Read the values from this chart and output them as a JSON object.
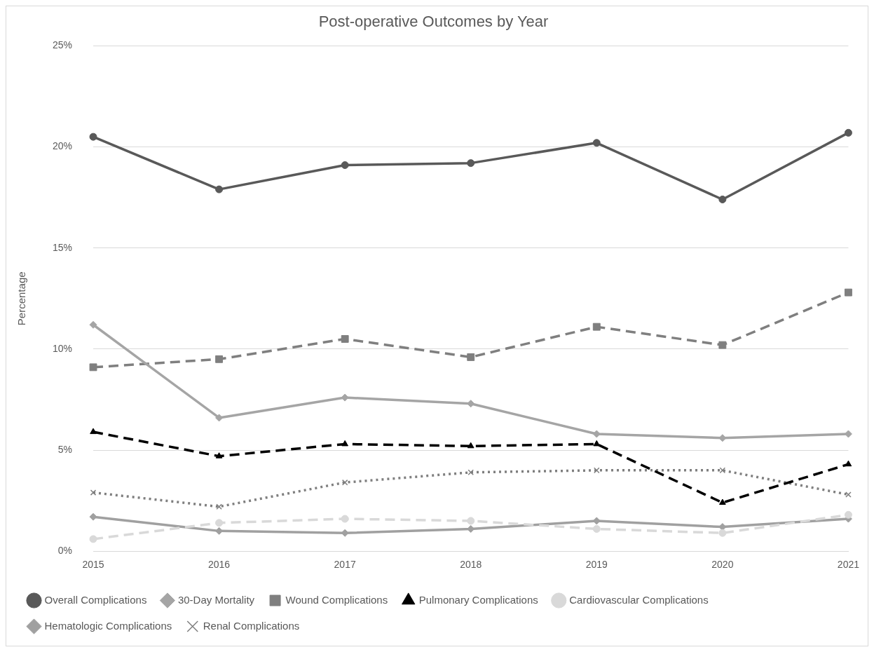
{
  "chart_data": {
    "type": "line",
    "title": "Post-operative Outcomes by Year",
    "ylabel": "Percentage",
    "categories": [
      "2015",
      "2016",
      "2017",
      "2018",
      "2019",
      "2020",
      "2021"
    ],
    "series": [
      {
        "name": "Overall Complications",
        "color": "#595959",
        "marker": "circle",
        "line_style": "solid",
        "values": [
          20.5,
          17.9,
          19.1,
          19.2,
          20.2,
          17.4,
          20.7
        ]
      },
      {
        "name": "30-Day Mortality",
        "color": "#a5a5a5",
        "marker": "diamond",
        "line_style": "solid",
        "values": [
          11.2,
          6.6,
          7.6,
          7.3,
          5.8,
          5.6,
          5.8
        ]
      },
      {
        "name": "Wound Complications",
        "color": "#7f7f7f",
        "marker": "square",
        "line_style": "dashed",
        "values": [
          9.1,
          9.5,
          10.5,
          9.6,
          11.1,
          10.2,
          12.8
        ]
      },
      {
        "name": "Pulmonary Complications",
        "color": "#000000",
        "marker": "triangle",
        "line_style": "dashed",
        "values": [
          5.9,
          4.7,
          5.3,
          5.2,
          5.3,
          2.4,
          4.3
        ]
      },
      {
        "name": "Cardiovascular Complications",
        "color": "#d9d9d9",
        "marker": "circle",
        "line_style": "dashed",
        "values": [
          0.6,
          1.4,
          1.6,
          1.5,
          1.1,
          0.9,
          1.8
        ]
      },
      {
        "name": "Hematologic Complications",
        "color": "#a0a0a0",
        "marker": "diamond",
        "line_style": "solid",
        "values": [
          1.7,
          1.0,
          0.9,
          1.1,
          1.5,
          1.2,
          1.6
        ]
      },
      {
        "name": "Renal Complications",
        "color": "#7f7f7f",
        "marker": "cross",
        "line_style": "dotted",
        "values": [
          2.9,
          2.2,
          3.4,
          3.9,
          4.0,
          4.0,
          2.8
        ]
      }
    ],
    "ylim": [
      0,
      25
    ],
    "yticks": [
      {
        "value": 0,
        "label": "0%"
      },
      {
        "value": 5,
        "label": "5%"
      },
      {
        "value": 10,
        "label": "10%"
      },
      {
        "value": 15,
        "label": "15%"
      },
      {
        "value": 20,
        "label": "20%"
      },
      {
        "value": 25,
        "label": "25%"
      }
    ],
    "grid": "y",
    "legend": "bottom"
  }
}
